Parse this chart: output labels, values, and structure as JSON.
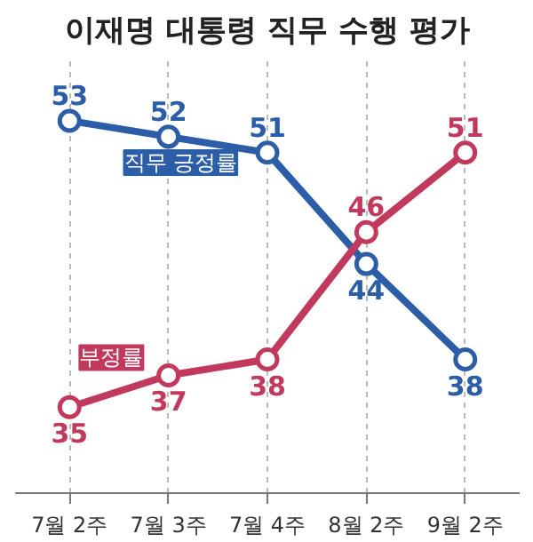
{
  "chart_data": {
    "type": "line",
    "title": "이재명 대통령 직무 수행 평가",
    "categories": [
      "7월 2주",
      "7월 3주",
      "7월 4주",
      "8월 2주",
      "9월 2주"
    ],
    "series": [
      {
        "name": "직무 긍정률",
        "color": "#2c5ea8",
        "values": [
          53,
          52,
          51,
          44,
          38
        ]
      },
      {
        "name": "부정률",
        "color": "#c13a5e",
        "values": [
          35,
          37,
          38,
          46,
          51
        ]
      }
    ],
    "data_labels": true,
    "marker": "circle",
    "line_style": "solid",
    "grid": "x"
  }
}
